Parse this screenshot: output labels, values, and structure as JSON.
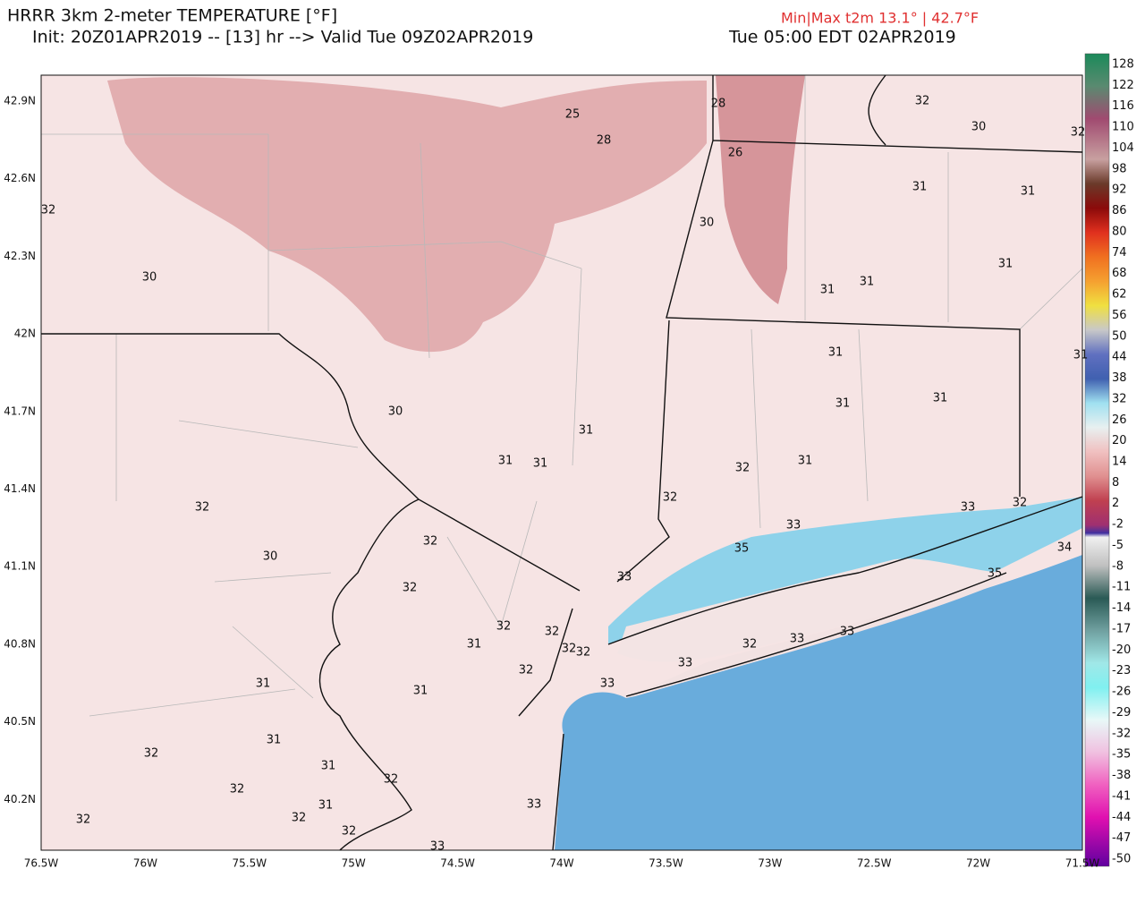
{
  "header": {
    "title": "HRRR 3km 2-meter TEMPERATURE [°F]",
    "init": "Init: 20Z01APR2019 -- [13] hr --> Valid Tue 09Z02APR2019",
    "local_time": "Tue 05:00 EDT 02APR2019",
    "min_max": "Min|Max t2m 13.1° | 42.7°F"
  },
  "lon_labels": [
    "76.5W",
    "76W",
    "75.5W",
    "75W",
    "74.5W",
    "74W",
    "73.5W",
    "73W",
    "72.5W",
    "72W",
    "71.5W"
  ],
  "lat_labels": [
    "42.9N",
    "42.6N",
    "42.3N",
    "42N",
    "41.7N",
    "41.4N",
    "41.1N",
    "40.8N",
    "40.5N",
    "40.2N"
  ],
  "colorbar_labels": [
    128,
    122,
    116,
    110,
    104,
    98,
    92,
    86,
    80,
    74,
    68,
    62,
    56,
    50,
    44,
    38,
    32,
    26,
    20,
    14,
    8,
    2,
    -2,
    -5,
    -8,
    -11,
    -14,
    -17,
    -20,
    -23,
    -26,
    -29,
    -32,
    -35,
    -38,
    -41,
    -44,
    -47,
    -50
  ],
  "map_labels": [
    "25",
    "28",
    "28",
    "26",
    "32",
    "30",
    "32",
    "32",
    "31",
    "31",
    "30",
    "30",
    "31",
    "31",
    "31",
    "31",
    "31",
    "30",
    "31",
    "31",
    "31",
    "31",
    "31",
    "31",
    "32",
    "32",
    "32",
    "32",
    "33",
    "33",
    "32",
    "34",
    "30",
    "35",
    "35",
    "33",
    "32",
    "32",
    "32",
    "31",
    "33",
    "32",
    "33",
    "32",
    "32",
    "32",
    "33",
    "33",
    "31",
    "31",
    "31",
    "32",
    "31",
    "32",
    "32",
    "31",
    "33",
    "32",
    "32",
    "32",
    "33"
  ]
}
